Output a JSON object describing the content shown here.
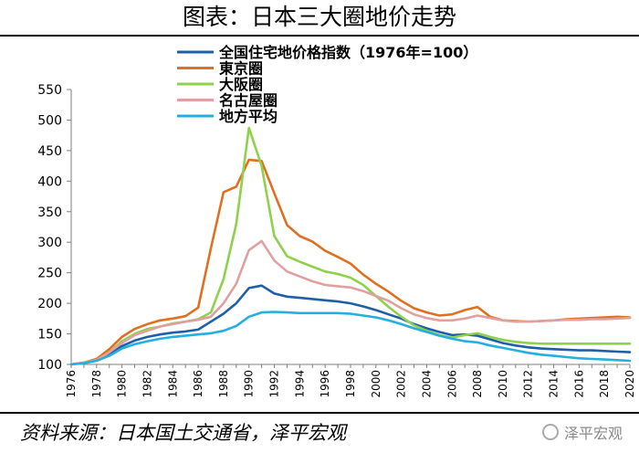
{
  "header": {
    "title": "图表：日本三大圈地价走势"
  },
  "footer": {
    "source": "资料来源：日本国土交通省，泽平宏观",
    "watermark": "泽平宏观"
  },
  "chart_data": {
    "type": "line",
    "title": "图表：日本三大圈地价走势",
    "xlabel": "",
    "ylabel": "",
    "ylim": [
      100,
      550
    ],
    "yticks": [
      100,
      150,
      200,
      250,
      300,
      350,
      400,
      450,
      500,
      550
    ],
    "xlim": [
      1976,
      2020
    ],
    "xticks": [
      "1976",
      "1978",
      "1980",
      "1982",
      "1984",
      "1986",
      "1988",
      "1990",
      "1992",
      "1994",
      "1996",
      "1998",
      "2000",
      "2002",
      "2004",
      "2006",
      "2008",
      "2010",
      "2012",
      "2014",
      "2016",
      "2018",
      "2020"
    ],
    "legend_position": "top-center",
    "x": [
      1976,
      1977,
      1978,
      1979,
      1980,
      1981,
      1982,
      1983,
      1984,
      1985,
      1986,
      1987,
      1988,
      1989,
      1990,
      1991,
      1992,
      1993,
      1994,
      1995,
      1996,
      1997,
      1998,
      1999,
      2000,
      2001,
      2002,
      2003,
      2004,
      2005,
      2006,
      2007,
      2008,
      2009,
      2010,
      2011,
      2012,
      2013,
      2014,
      2015,
      2016,
      2017,
      2018,
      2019,
      2020
    ],
    "series": [
      {
        "name": "全国住宅地价格指数（1976年=100）",
        "color": "#1f5fa8",
        "values": [
          100,
          103,
          108,
          118,
          130,
          139,
          145,
          149,
          152,
          154,
          157,
          170,
          183,
          200,
          225,
          229,
          216,
          211,
          209,
          207,
          205,
          203,
          200,
          195,
          189,
          182,
          175,
          166,
          159,
          153,
          148,
          149,
          147,
          141,
          135,
          131,
          128,
          126,
          125,
          124,
          123,
          123,
          122,
          121,
          120
        ]
      },
      {
        "name": "東京圈",
        "color": "#e07020",
        "values": [
          100,
          103,
          109,
          125,
          145,
          158,
          166,
          172,
          175,
          179,
          193,
          290,
          382,
          391,
          435,
          433,
          380,
          328,
          310,
          301,
          286,
          276,
          265,
          247,
          232,
          219,
          204,
          192,
          185,
          180,
          182,
          189,
          194,
          178,
          172,
          171,
          170,
          171,
          172,
          174,
          175,
          176,
          177,
          178,
          177
        ]
      },
      {
        "name": "大阪圈",
        "color": "#8fd14a",
        "values": [
          100,
          103,
          107,
          120,
          138,
          150,
          158,
          162,
          167,
          170,
          174,
          185,
          240,
          330,
          487,
          425,
          310,
          277,
          268,
          260,
          252,
          248,
          242,
          230,
          212,
          194,
          178,
          164,
          155,
          148,
          144,
          148,
          151,
          145,
          140,
          137,
          135,
          134,
          134,
          134,
          134,
          134,
          134,
          134,
          134
        ]
      },
      {
        "name": "名古屋圈",
        "color": "#e0a0a0",
        "values": [
          100,
          103,
          107,
          120,
          135,
          148,
          155,
          162,
          166,
          170,
          173,
          178,
          200,
          232,
          287,
          302,
          270,
          252,
          244,
          236,
          230,
          228,
          226,
          220,
          212,
          204,
          192,
          182,
          176,
          172,
          172,
          175,
          180,
          176,
          172,
          170,
          170,
          171,
          172,
          173,
          173,
          174,
          174,
          175,
          176
        ]
      },
      {
        "name": "地方平均",
        "color": "#25aee0",
        "values": [
          100,
          102,
          106,
          114,
          126,
          133,
          138,
          142,
          145,
          147,
          149,
          151,
          155,
          163,
          178,
          185,
          186,
          185,
          184,
          184,
          184,
          184,
          183,
          180,
          177,
          172,
          166,
          159,
          153,
          147,
          142,
          138,
          136,
          131,
          127,
          123,
          119,
          116,
          114,
          112,
          110,
          109,
          108,
          107,
          106
        ]
      }
    ]
  }
}
